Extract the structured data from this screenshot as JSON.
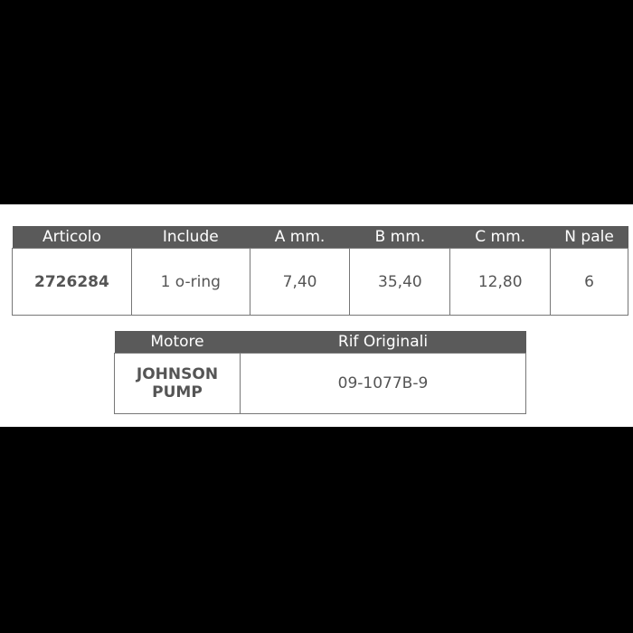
{
  "specs_table": {
    "headers": [
      "Articolo",
      "Include",
      "A mm.",
      "B mm.",
      "C mm.",
      "N pale"
    ],
    "row": [
      "2726284",
      "1 o-ring",
      "7,40",
      "35,40",
      "12,80",
      "6"
    ]
  },
  "engine_table": {
    "headers": [
      "Motore",
      "Rif Originali"
    ],
    "row": [
      "JOHNSON PUMP",
      "09-1077B-9"
    ]
  }
}
